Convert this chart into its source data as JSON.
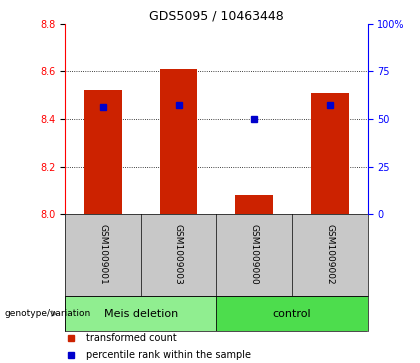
{
  "title": "GDS5095 / 10463448",
  "samples": [
    "GSM1009001",
    "GSM1009003",
    "GSM1009000",
    "GSM1009002"
  ],
  "transformed_count": [
    8.52,
    8.61,
    8.08,
    8.51
  ],
  "percentile_rank_value": [
    8.45,
    8.46,
    8.4,
    8.46
  ],
  "bar_bottom": 8.0,
  "ylim_left": [
    8.0,
    8.8
  ],
  "ylim_right": [
    0,
    100
  ],
  "yticks_left": [
    8.0,
    8.2,
    8.4,
    8.6,
    8.8
  ],
  "yticks_right": [
    0,
    25,
    50,
    75,
    100
  ],
  "ytick_labels_right": [
    "0",
    "25",
    "50",
    "75",
    "100%"
  ],
  "grid_yticks": [
    8.2,
    8.4,
    8.6
  ],
  "bar_color": "#cc2200",
  "percentile_color": "#0000cc",
  "bg_plot": "#ffffff",
  "bg_sample_row": "#c8c8c8",
  "bg_figure": "#ffffff",
  "group_info": [
    {
      "name": "Meis deletion",
      "start": 0,
      "end": 1,
      "color": "#90EE90"
    },
    {
      "name": "control",
      "start": 2,
      "end": 3,
      "color": "#4ddd4d"
    }
  ],
  "legend_tc": "transformed count",
  "legend_pr": "percentile rank within the sample",
  "bar_width": 0.5,
  "title_fontsize": 9,
  "tick_fontsize": 7,
  "sample_fontsize": 6.5,
  "group_fontsize": 8,
  "legend_fontsize": 7
}
